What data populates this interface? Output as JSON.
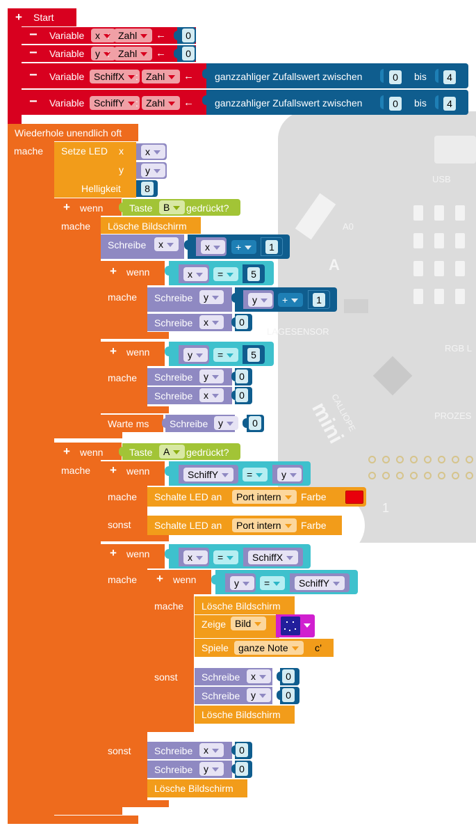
{
  "background": {
    "board_labels": [
      "USB",
      "RGB L",
      "A0",
      "A",
      "LAGESENSOR",
      "CALLIOPE",
      "mini",
      "PROZES",
      "1"
    ]
  },
  "colors": {
    "start": "#d8001f",
    "variable": "#d8001f",
    "loop": "#ee6b1d",
    "control": "#ee6b1d",
    "led": "#f29c1a",
    "sensor": "#a2c436",
    "logic": "#3ec1cd",
    "vars": "#8f89c2",
    "math": "#0f5d8e",
    "led_red": "#e8000b"
  },
  "start_block": {
    "label": "Start"
  },
  "declarations": [
    {
      "label": "Variable",
      "name": "x",
      "colon": ":",
      "type": "Zahl",
      "arrow": "←",
      "value": "0"
    },
    {
      "label": "Variable",
      "name": "y",
      "colon": ":",
      "type": "Zahl",
      "arrow": "←",
      "value": "0"
    },
    {
      "label": "Variable",
      "name": "SchiffX",
      "colon": ":",
      "type": "Zahl",
      "arrow": "←",
      "random_label": "ganzzahliger Zufallswert zwischen",
      "min": "0",
      "bis": "bis",
      "max": "4"
    },
    {
      "label": "Variable",
      "name": "SchiffY",
      "colon": ":",
      "type": "Zahl",
      "arrow": "←",
      "random_label": "ganzzahliger Zufallswert zwischen",
      "min": "0",
      "bis": "bis",
      "max": "4"
    }
  ],
  "loop": {
    "label": "Wiederhole unendlich oft",
    "do_label": "mache"
  },
  "set_led": {
    "label": "Setze LED",
    "x_label": "x",
    "x_var": "x",
    "y_label": "y",
    "y_var": "y",
    "brightness_label": "Helligkeit",
    "brightness": "8"
  },
  "if_b": {
    "if_label": "wenn",
    "do_label": "mache",
    "button_label": "Taste",
    "button": "B",
    "pressed": "gedrückt?",
    "clear": "Lösche Bildschirm",
    "write_label": "Schreibe",
    "write_var": "x",
    "plus_var": "x",
    "plus_op": "+",
    "plus_val": "1",
    "inner_if1": {
      "if_label": "wenn",
      "cmp_var": "x",
      "cmp_op": "=",
      "cmp_val": "5",
      "do_label": "mache",
      "write1_label": "Schreibe",
      "write1_var": "y",
      "w1_plus_var": "y",
      "w1_op": "+",
      "w1_val": "1",
      "write2_label": "Schreibe",
      "write2_var": "x",
      "write2_val": "0"
    },
    "inner_if2": {
      "if_label": "wenn",
      "cmp_var": "y",
      "cmp_op": "=",
      "cmp_val": "5",
      "do_label": "mache",
      "write1_label": "Schreibe",
      "write1_var": "y",
      "write1_val": "0",
      "write2_label": "Schreibe",
      "write2_var": "x",
      "write2_val": "0"
    },
    "wait_label": "Warte ms",
    "wait_write_label": "Schreibe",
    "wait_write_var": "y",
    "wait_write_val": "0"
  },
  "if_a": {
    "if_label": "wenn",
    "do_label": "mache",
    "button_label": "Taste",
    "button": "A",
    "pressed": "gedrückt?",
    "inner1": {
      "if_label": "wenn",
      "cmp_var": "SchiffY",
      "cmp_op": "=",
      "cmp_val_var": "y",
      "do_label": "mache",
      "led_label": "Schalte LED an",
      "port": "Port intern",
      "color_label": "Farbe",
      "else_label": "sonst",
      "else_led_label": "Schalte LED an",
      "else_port": "Port intern",
      "else_color_label": "Farbe"
    },
    "inner2": {
      "if_label": "wenn",
      "cmp_var": "x",
      "cmp_op": "=",
      "cmp_val_var": "SchiffX",
      "do_label": "mache",
      "nested": {
        "if_label": "wenn",
        "cmp_var": "y",
        "cmp_op": "=",
        "cmp_val_var": "SchiffY",
        "do_label": "mache",
        "clear": "Lösche Bildschirm",
        "show_label": "Zeige",
        "show_type": "Bild",
        "play_label": "Spiele",
        "note": "ganze Note",
        "pitch": "c’",
        "else_label": "sonst",
        "else_w1_label": "Schreibe",
        "else_w1_var": "x",
        "else_w1_val": "0",
        "else_w2_label": "Schreibe",
        "else_w2_var": "y",
        "else_w2_val": "0",
        "else_clear": "Lösche Bildschirm"
      },
      "else_label": "sonst",
      "else_w1_label": "Schreibe",
      "else_w1_var": "x",
      "else_w1_val": "0",
      "else_w2_label": "Schreibe",
      "else_w2_var": "y",
      "else_w2_val": "0",
      "else_clear": "Lösche Bildschirm"
    }
  }
}
